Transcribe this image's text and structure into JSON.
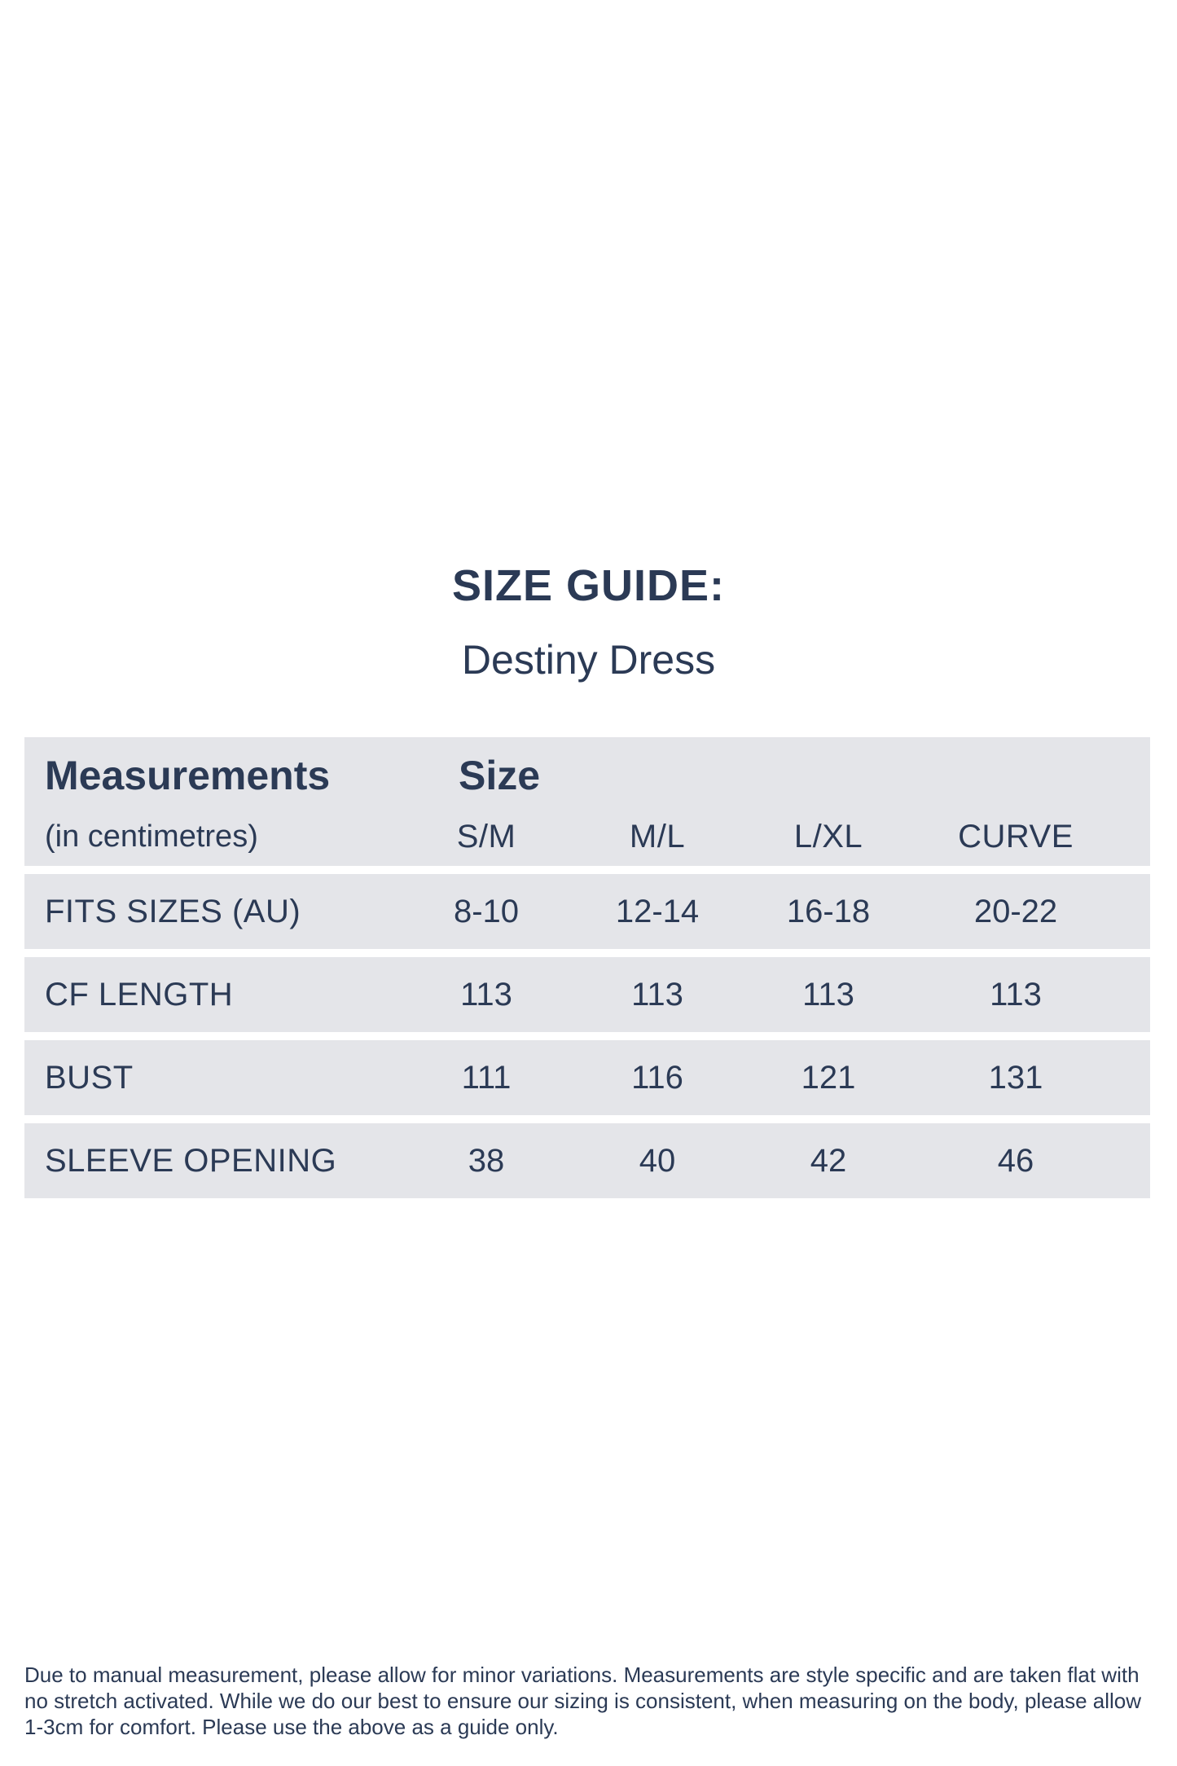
{
  "page": {
    "title": "SIZE GUIDE:",
    "subtitle": "Destiny Dress"
  },
  "table": {
    "header": {
      "col1_title": "Measurements",
      "col1_subtitle": "(in centimetres)",
      "size_title": "Size",
      "size_labels": [
        "S/M",
        "M/L",
        "L/XL",
        "CURVE"
      ]
    },
    "rows": [
      {
        "label": "FITS SIZES (AU)",
        "values": [
          "8-10",
          "12-14",
          "16-18",
          "20-22"
        ]
      },
      {
        "label": "CF LENGTH",
        "values": [
          "113",
          "113",
          "113",
          "113"
        ]
      },
      {
        "label": "BUST",
        "values": [
          "111",
          "116",
          "121",
          "131"
        ]
      },
      {
        "label": "SLEEVE OPENING",
        "values": [
          "38",
          "40",
          "42",
          "46"
        ]
      }
    ]
  },
  "footer": {
    "lines": [
      "Due to manual measurement, please allow for minor variations. Measurements are style specific and are taken flat with",
      "no stretch activated. While we do our best to ensure our sizing is consistent, when measuring on the body, please allow",
      "1-3cm for comfort. Please use the above as a guide only."
    ]
  },
  "colors": {
    "text_navy": "#2b3a55",
    "row_bg": "#e4e5e9",
    "page_bg": "#ffffff"
  }
}
